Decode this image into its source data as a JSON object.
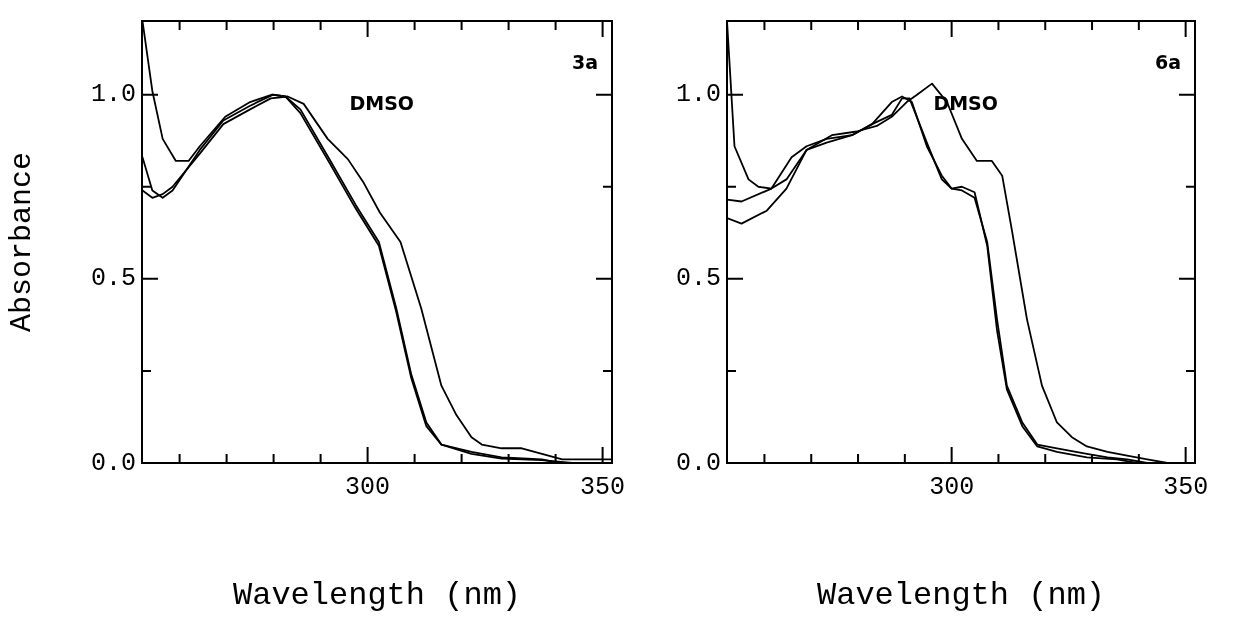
{
  "chart_data": [
    {
      "type": "line",
      "title": "3a",
      "xlabel": "Wavelength (nm)",
      "ylabel": "Absorbance",
      "marker": "none",
      "line_style": "solid",
      "xlim": [
        252,
        352
      ],
      "ylim": [
        0,
        1.2
      ],
      "xticks": [
        {
          "value": 260,
          "label": null
        },
        {
          "value": 270,
          "label": null
        },
        {
          "value": 280,
          "label": null
        },
        {
          "value": 290,
          "label": null
        },
        {
          "value": 300,
          "label": "300"
        },
        {
          "value": 310,
          "label": null
        },
        {
          "value": 320,
          "label": null
        },
        {
          "value": 330,
          "label": null
        },
        {
          "value": 340,
          "label": null
        },
        {
          "value": 350,
          "label": "350"
        }
      ],
      "yticks": [
        {
          "value": 0,
          "label": "0.0"
        },
        {
          "value": 0.25,
          "label": null
        },
        0.5,
        {
          "value": 0.75,
          "label": null
        },
        {
          "value": 1,
          "label": "1.0"
        }
      ],
      "annotations": [
        "DMSO"
      ],
      "series": [
        {
          "color": "#000000",
          "x": [
            252.1,
            254.2,
            256.4,
            259.2,
            261.9,
            264.3,
            269.7,
            275,
            279.7,
            282.5,
            285.7,
            292.1,
            297.5,
            302.4,
            306.1,
            309.3,
            312.5,
            315.7,
            322.1,
            328.5,
            337.1,
            343.5
          ],
          "values": [
            1.2,
            1.01,
            0.88,
            0.82,
            0.82,
            0.86,
            0.94,
            0.98,
            1.0,
            0.995,
            0.95,
            0.81,
            0.69,
            0.59,
            0.41,
            0.23,
            0.1,
            0.05,
            0.025,
            0.012,
            0.008,
            0
          ]
        },
        {
          "color": "#000000",
          "x": [
            252.1,
            254.2,
            256.4,
            258.5,
            264.3,
            269.3,
            275,
            279.9,
            282.5,
            285.7,
            292.1,
            297.5,
            302.4,
            306.1,
            309.3,
            312.5,
            315.7,
            322.1,
            328.5,
            337.1,
            340.5
          ],
          "values": [
            0.83,
            0.74,
            0.72,
            0.74,
            0.85,
            0.93,
            0.97,
            1.0,
            0.995,
            0.96,
            0.82,
            0.7,
            0.6,
            0.42,
            0.24,
            0.11,
            0.05,
            0.03,
            0.015,
            0.01,
            0
          ]
        },
        {
          "color": "#000000",
          "x": [
            252.1,
            254.2,
            256.4,
            258.5,
            264.3,
            269.3,
            275,
            279.4,
            283,
            286.4,
            291.5,
            295.8,
            299.2,
            302.6,
            307,
            311.4,
            315.7,
            318.9,
            322.1,
            324.3,
            328.5,
            332.8,
            337.1,
            341.4,
            345.7,
            352
          ],
          "values": [
            0.74,
            0.72,
            0.73,
            0.75,
            0.84,
            0.92,
            0.96,
            0.99,
            0.995,
            0.975,
            0.88,
            0.825,
            0.76,
            0.68,
            0.6,
            0.42,
            0.21,
            0.13,
            0.07,
            0.05,
            0.04,
            0.04,
            0.025,
            0.01,
            0.01,
            0.01
          ]
        }
      ]
    },
    {
      "type": "line",
      "title": "6a",
      "xlabel": "Wavelength (nm)",
      "marker": "none",
      "line_style": "solid",
      "xlim": [
        252,
        352
      ],
      "ylim": [
        0,
        1.2
      ],
      "xticks": [
        {
          "value": 260,
          "label": null
        },
        {
          "value": 270,
          "label": null
        },
        {
          "value": 280,
          "label": null
        },
        {
          "value": 290,
          "label": null
        },
        {
          "value": 300,
          "label": "300"
        },
        {
          "value": 310,
          "label": null
        },
        {
          "value": 320,
          "label": null
        },
        {
          "value": 330,
          "label": null
        },
        {
          "value": 340,
          "label": null
        },
        {
          "value": 350,
          "label": "350"
        }
      ],
      "yticks": [
        {
          "value": 0,
          "label": "0.0"
        },
        {
          "value": 0.25,
          "label": null
        },
        0.5,
        {
          "value": 0.75,
          "label": null
        },
        {
          "value": 1,
          "label": "1.0"
        }
      ],
      "annotations": [
        "DMSO"
      ],
      "series": [
        {
          "color": "#000000",
          "x": [
            252,
            253.6,
            256.6,
            258.7,
            261.5,
            264.7,
            269,
            274.4,
            279.7,
            284,
            287.2,
            290.4,
            292.6,
            295.8,
            299,
            302.2,
            305.4,
            308.6,
            310.8,
            312.9,
            316.1,
            319.3,
            322.5,
            325.7,
            328.9,
            333.3,
            337.5,
            341.8,
            346.1
          ],
          "values": [
            1.2,
            0.86,
            0.77,
            0.75,
            0.745,
            0.77,
            0.85,
            0.89,
            0.9,
            0.915,
            0.94,
            0.98,
            1.0,
            1.03,
            0.98,
            0.88,
            0.82,
            0.82,
            0.78,
            0.63,
            0.39,
            0.21,
            0.11,
            0.07,
            0.045,
            0.03,
            0.02,
            0.01,
            0
          ]
        },
        {
          "color": "#000000",
          "x": [
            252,
            255.1,
            261.5,
            265.8,
            269,
            273.3,
            278.7,
            283,
            287.2,
            289.4,
            291.5,
            294.7,
            297.9,
            300,
            302.2,
            304.9,
            307.6,
            309.7,
            311.8,
            315.1,
            318.3,
            322.5,
            328.9,
            333.3,
            337.5,
            341.8
          ],
          "values": [
            0.715,
            0.71,
            0.745,
            0.83,
            0.86,
            0.88,
            0.89,
            0.92,
            0.98,
            0.995,
            0.98,
            0.86,
            0.78,
            0.745,
            0.74,
            0.72,
            0.6,
            0.39,
            0.21,
            0.11,
            0.05,
            0.04,
            0.025,
            0.015,
            0.01,
            0
          ]
        },
        {
          "color": "#000000",
          "x": [
            252,
            255.1,
            260.5,
            264.7,
            269,
            273.3,
            278.7,
            283,
            287.2,
            289.4,
            291,
            294.7,
            297.9,
            300,
            302.2,
            304.9,
            307.6,
            309.7,
            311.8,
            315.1,
            318.3,
            322.5,
            328.9,
            335.3,
            339.6
          ],
          "values": [
            0.665,
            0.65,
            0.685,
            0.745,
            0.85,
            0.87,
            0.89,
            0.92,
            0.945,
            0.99,
            0.99,
            0.87,
            0.77,
            0.745,
            0.75,
            0.735,
            0.59,
            0.36,
            0.2,
            0.1,
            0.045,
            0.03,
            0.015,
            0.01,
            0
          ]
        }
      ]
    }
  ]
}
